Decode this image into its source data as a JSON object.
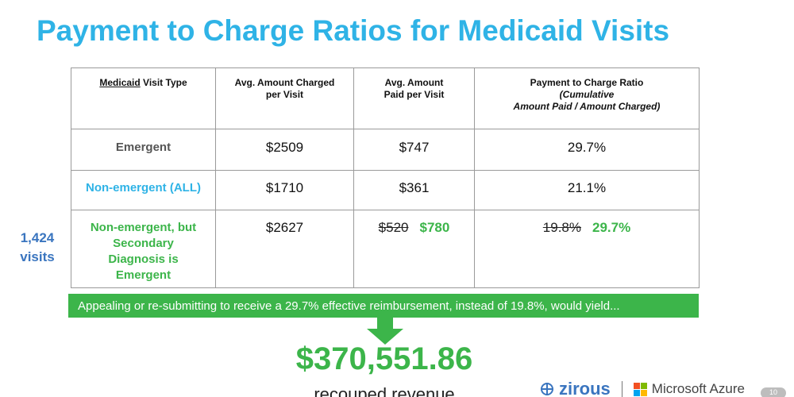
{
  "title": "Payment to Charge Ratios for Medicaid Visits",
  "table": {
    "headers": {
      "col1_ul": "Medicaid",
      "col1_rest": " Visit Type",
      "col2_line1": "Avg. Amount Charged",
      "col2_line2": "per Visit",
      "col3_line1": "Avg. Amount",
      "col3_line2": "Paid per Visit",
      "col4_line1": "Payment to Charge Ratio",
      "col4_line2": "(Cumulative",
      "col4_line3": "Amount Paid / Amount Charged)"
    },
    "rows": [
      {
        "type": "Emergent",
        "charged": "$2509",
        "paid": "$747",
        "ratio": "29.7%"
      },
      {
        "type": "Non-emergent (ALL)",
        "charged": "$1710",
        "paid": "$361",
        "ratio": "21.1%"
      },
      {
        "type_line1": "Non-emergent, but",
        "type_line2": "Secondary",
        "type_line3": "Diagnosis is",
        "type_line4": "Emergent",
        "charged": "$2627",
        "paid_old": "$520",
        "paid_new": "$780",
        "ratio_old": "19.8%",
        "ratio_new": "29.7%"
      }
    ]
  },
  "visits": {
    "count": "1,424",
    "label": "visits"
  },
  "banner": "Appealing or re-submitting to receive a 29.7% effective reimbursement, instead of 19.8%, would yield...",
  "result": {
    "amount": "$370,551.86",
    "label": "recouped revenue"
  },
  "footer": {
    "brand": "zirous",
    "partner": "Microsoft Azure",
    "page": "10"
  },
  "colors": {
    "title_blue": "#2fb3e6",
    "green": "#3cb54a",
    "visits_blue": "#3a75bf"
  }
}
